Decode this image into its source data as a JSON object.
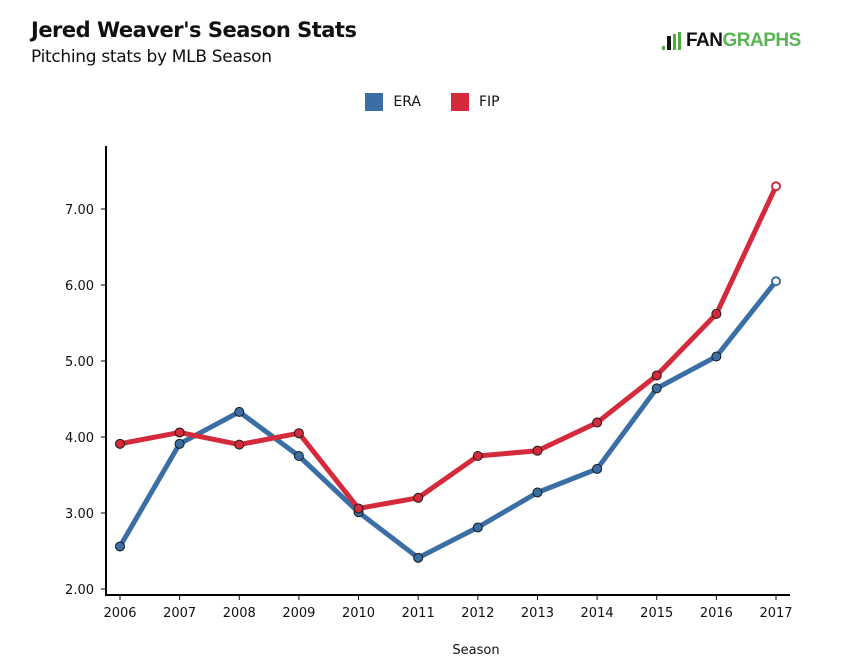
{
  "header": {
    "title": "Jered Weaver's Season Stats",
    "subtitle": "Pitching stats by MLB Season"
  },
  "logo": {
    "part1": "FAN",
    "part2": "GRAPHS",
    "icon": "batter-silhouette-icon",
    "colors": {
      "dark": "#111111",
      "green": "#59b552"
    }
  },
  "legend": [
    {
      "label": "ERA",
      "color": "#3a6ea5"
    },
    {
      "label": "FIP",
      "color": "#d42a3c"
    }
  ],
  "chart_data": {
    "type": "line",
    "title": "Jered Weaver's Season Stats",
    "subtitle": "Pitching stats by MLB Season",
    "xlabel": "Season",
    "ylabel": "",
    "x": [
      2006,
      2007,
      2008,
      2009,
      2010,
      2011,
      2012,
      2013,
      2014,
      2015,
      2016,
      2017
    ],
    "x_tick_labels": [
      "2006",
      "2007",
      "2008",
      "2009",
      "2010",
      "2011",
      "2012",
      "2013",
      "2014",
      "2015",
      "2016",
      "2017"
    ],
    "y_ticks": [
      2,
      3,
      4,
      5,
      6,
      7
    ],
    "y_tick_labels": [
      "2.00",
      "3.00",
      "4.00",
      "5.00",
      "6.00",
      "7.00"
    ],
    "ylim": [
      2.0,
      7.85
    ],
    "grid": false,
    "legend_position": "top-center",
    "series": [
      {
        "name": "ERA",
        "color": "#3a6ea5",
        "values": [
          2.56,
          3.91,
          4.33,
          3.75,
          3.01,
          2.41,
          2.81,
          3.27,
          3.58,
          4.64,
          5.06,
          6.05
        ],
        "hollow_last_point": true
      },
      {
        "name": "FIP",
        "color": "#d42a3c",
        "values": [
          3.91,
          4.06,
          3.9,
          4.05,
          3.06,
          3.2,
          3.75,
          3.82,
          4.19,
          4.81,
          5.62,
          7.3
        ],
        "hollow_last_point": true
      }
    ]
  }
}
